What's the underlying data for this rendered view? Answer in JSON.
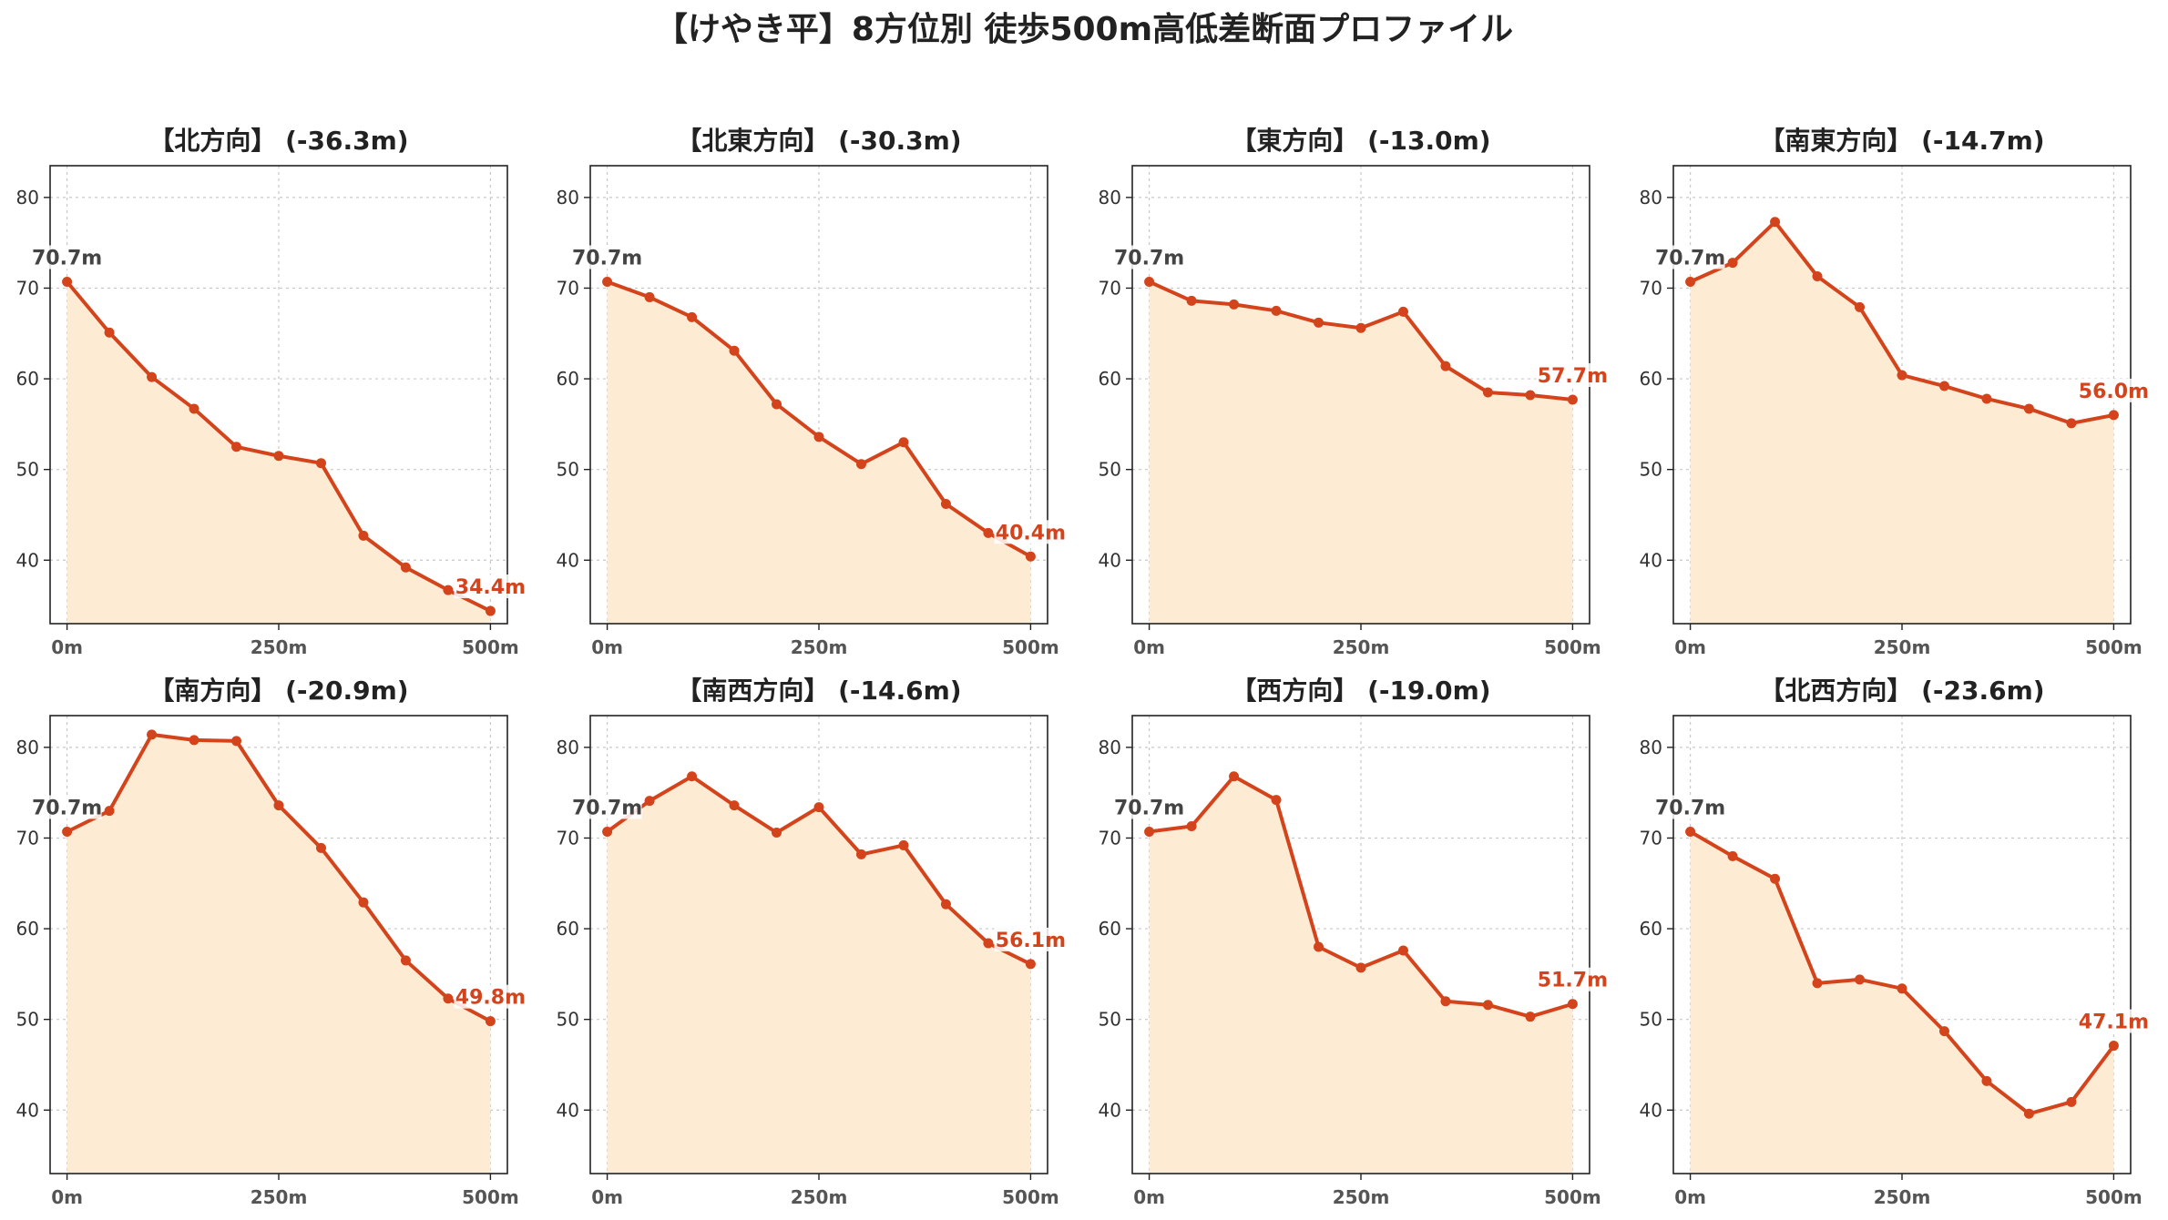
{
  "title": "【けやき平】8方位別 徒歩500m高低差断面プロファイル",
  "colors": {
    "line": "#d4441c",
    "fill": "#fdebd3",
    "grid": "#c8c8c8",
    "start_label": "#444444",
    "end_label": "#d4441c"
  },
  "chart_data": [
    {
      "type": "area",
      "title": "【北方向】 (-36.3m)",
      "x": [
        0,
        50,
        100,
        150,
        200,
        250,
        300,
        350,
        400,
        450,
        500
      ],
      "values": [
        70.7,
        65.1,
        60.2,
        56.7,
        52.5,
        51.5,
        50.7,
        42.7,
        39.2,
        36.7,
        34.4
      ],
      "xticks": [
        "0m",
        "250m",
        "500m"
      ],
      "yticks": [
        "40",
        "50",
        "60",
        "70",
        "80"
      ],
      "ylim": [
        33,
        83.5
      ],
      "grid": true,
      "start_label": "70.7m",
      "end_label": "34.4m"
    },
    {
      "type": "area",
      "title": "【北東方向】 (-30.3m)",
      "x": [
        0,
        50,
        100,
        150,
        200,
        250,
        300,
        350,
        400,
        450,
        500
      ],
      "values": [
        70.7,
        69.0,
        66.8,
        63.1,
        57.2,
        53.6,
        50.6,
        53.0,
        46.2,
        43.0,
        40.4
      ],
      "xticks": [
        "0m",
        "250m",
        "500m"
      ],
      "yticks": [
        "40",
        "50",
        "60",
        "70",
        "80"
      ],
      "ylim": [
        33,
        83.5
      ],
      "grid": true,
      "start_label": "70.7m",
      "end_label": "40.4m"
    },
    {
      "type": "area",
      "title": "【東方向】 (-13.0m)",
      "x": [
        0,
        50,
        100,
        150,
        200,
        250,
        300,
        350,
        400,
        450,
        500
      ],
      "values": [
        70.7,
        68.6,
        68.2,
        67.5,
        66.2,
        65.6,
        67.4,
        61.4,
        58.5,
        58.2,
        57.7
      ],
      "xticks": [
        "0m",
        "250m",
        "500m"
      ],
      "yticks": [
        "40",
        "50",
        "60",
        "70",
        "80"
      ],
      "ylim": [
        33,
        83.5
      ],
      "grid": true,
      "start_label": "70.7m",
      "end_label": "57.7m"
    },
    {
      "type": "area",
      "title": "【南東方向】 (-14.7m)",
      "x": [
        0,
        50,
        100,
        150,
        200,
        250,
        300,
        350,
        400,
        450,
        500
      ],
      "values": [
        70.7,
        72.8,
        77.3,
        71.3,
        67.9,
        60.4,
        59.2,
        57.8,
        56.7,
        55.1,
        56.0
      ],
      "xticks": [
        "0m",
        "250m",
        "500m"
      ],
      "yticks": [
        "40",
        "50",
        "60",
        "70",
        "80"
      ],
      "ylim": [
        33,
        83.5
      ],
      "grid": true,
      "start_label": "70.7m",
      "end_label": "56.0m"
    },
    {
      "type": "area",
      "title": "【南方向】 (-20.9m)",
      "x": [
        0,
        50,
        100,
        150,
        200,
        250,
        300,
        350,
        400,
        450,
        500
      ],
      "values": [
        70.7,
        73.0,
        81.4,
        80.8,
        80.7,
        73.6,
        68.9,
        62.9,
        56.5,
        52.3,
        49.8
      ],
      "xticks": [
        "0m",
        "250m",
        "500m"
      ],
      "yticks": [
        "40",
        "50",
        "60",
        "70",
        "80"
      ],
      "ylim": [
        33,
        83.5
      ],
      "grid": true,
      "start_label": "70.7m",
      "end_label": "49.8m"
    },
    {
      "type": "area",
      "title": "【南西方向】 (-14.6m)",
      "x": [
        0,
        50,
        100,
        150,
        200,
        250,
        300,
        350,
        400,
        450,
        500
      ],
      "values": [
        70.7,
        74.1,
        76.8,
        73.6,
        70.6,
        73.4,
        68.2,
        69.2,
        62.7,
        58.4,
        56.1
      ],
      "xticks": [
        "0m",
        "250m",
        "500m"
      ],
      "yticks": [
        "40",
        "50",
        "60",
        "70",
        "80"
      ],
      "ylim": [
        33,
        83.5
      ],
      "grid": true,
      "start_label": "70.7m",
      "end_label": "56.1m"
    },
    {
      "type": "area",
      "title": "【西方向】 (-19.0m)",
      "x": [
        0,
        50,
        100,
        150,
        200,
        250,
        300,
        350,
        400,
        450,
        500
      ],
      "values": [
        70.7,
        71.3,
        76.8,
        74.2,
        58.0,
        55.7,
        57.6,
        52.0,
        51.6,
        50.3,
        51.7
      ],
      "xticks": [
        "0m",
        "250m",
        "500m"
      ],
      "yticks": [
        "40",
        "50",
        "60",
        "70",
        "80"
      ],
      "ylim": [
        33,
        83.5
      ],
      "grid": true,
      "start_label": "70.7m",
      "end_label": "51.7m"
    },
    {
      "type": "area",
      "title": "【北西方向】 (-23.6m)",
      "x": [
        0,
        50,
        100,
        150,
        200,
        250,
        300,
        350,
        400,
        450,
        500
      ],
      "values": [
        70.7,
        68.0,
        65.5,
        54.0,
        54.4,
        53.4,
        48.7,
        43.2,
        39.6,
        40.9,
        47.1
      ],
      "xticks": [
        "0m",
        "250m",
        "500m"
      ],
      "yticks": [
        "40",
        "50",
        "60",
        "70",
        "80"
      ],
      "ylim": [
        33,
        83.5
      ],
      "grid": true,
      "start_label": "70.7m",
      "end_label": "47.1m"
    }
  ]
}
